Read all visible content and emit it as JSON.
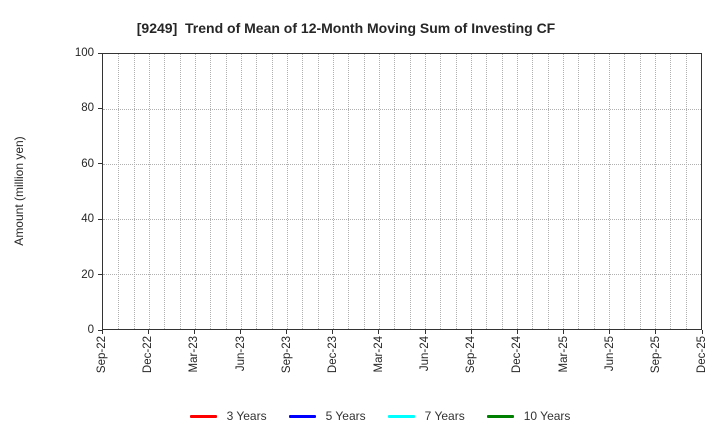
{
  "chart_data": {
    "type": "line",
    "title": "[9249]  Trend of Mean of 12-Month Moving Sum of Investing CF",
    "xlabel": "",
    "ylabel": "Amount (million yen)",
    "ylim": [
      0,
      100
    ],
    "yticks": [
      0,
      20,
      40,
      60,
      80,
      100
    ],
    "x_tick_labels": [
      "Sep-22",
      "Dec-22",
      "Mar-23",
      "Jun-23",
      "Sep-23",
      "Dec-23",
      "Mar-24",
      "Jun-24",
      "Sep-24",
      "Dec-24",
      "Mar-25",
      "Jun-25",
      "Sep-25",
      "Dec-25"
    ],
    "x_minor_per_interval": 3,
    "grid": true,
    "grid_style": "dotted",
    "legend_position": "bottom-center",
    "series": [
      {
        "name": "3 Years",
        "color": "#ff0000",
        "values": []
      },
      {
        "name": "5 Years",
        "color": "#0000ff",
        "values": []
      },
      {
        "name": "7 Years",
        "color": "#00ffff",
        "values": []
      },
      {
        "name": "10 Years",
        "color": "#008000",
        "values": []
      }
    ]
  },
  "colors": {
    "background": "#ffffff",
    "axis_border": "#333333",
    "gridline": "#b0b0b0",
    "text": "#262626"
  }
}
